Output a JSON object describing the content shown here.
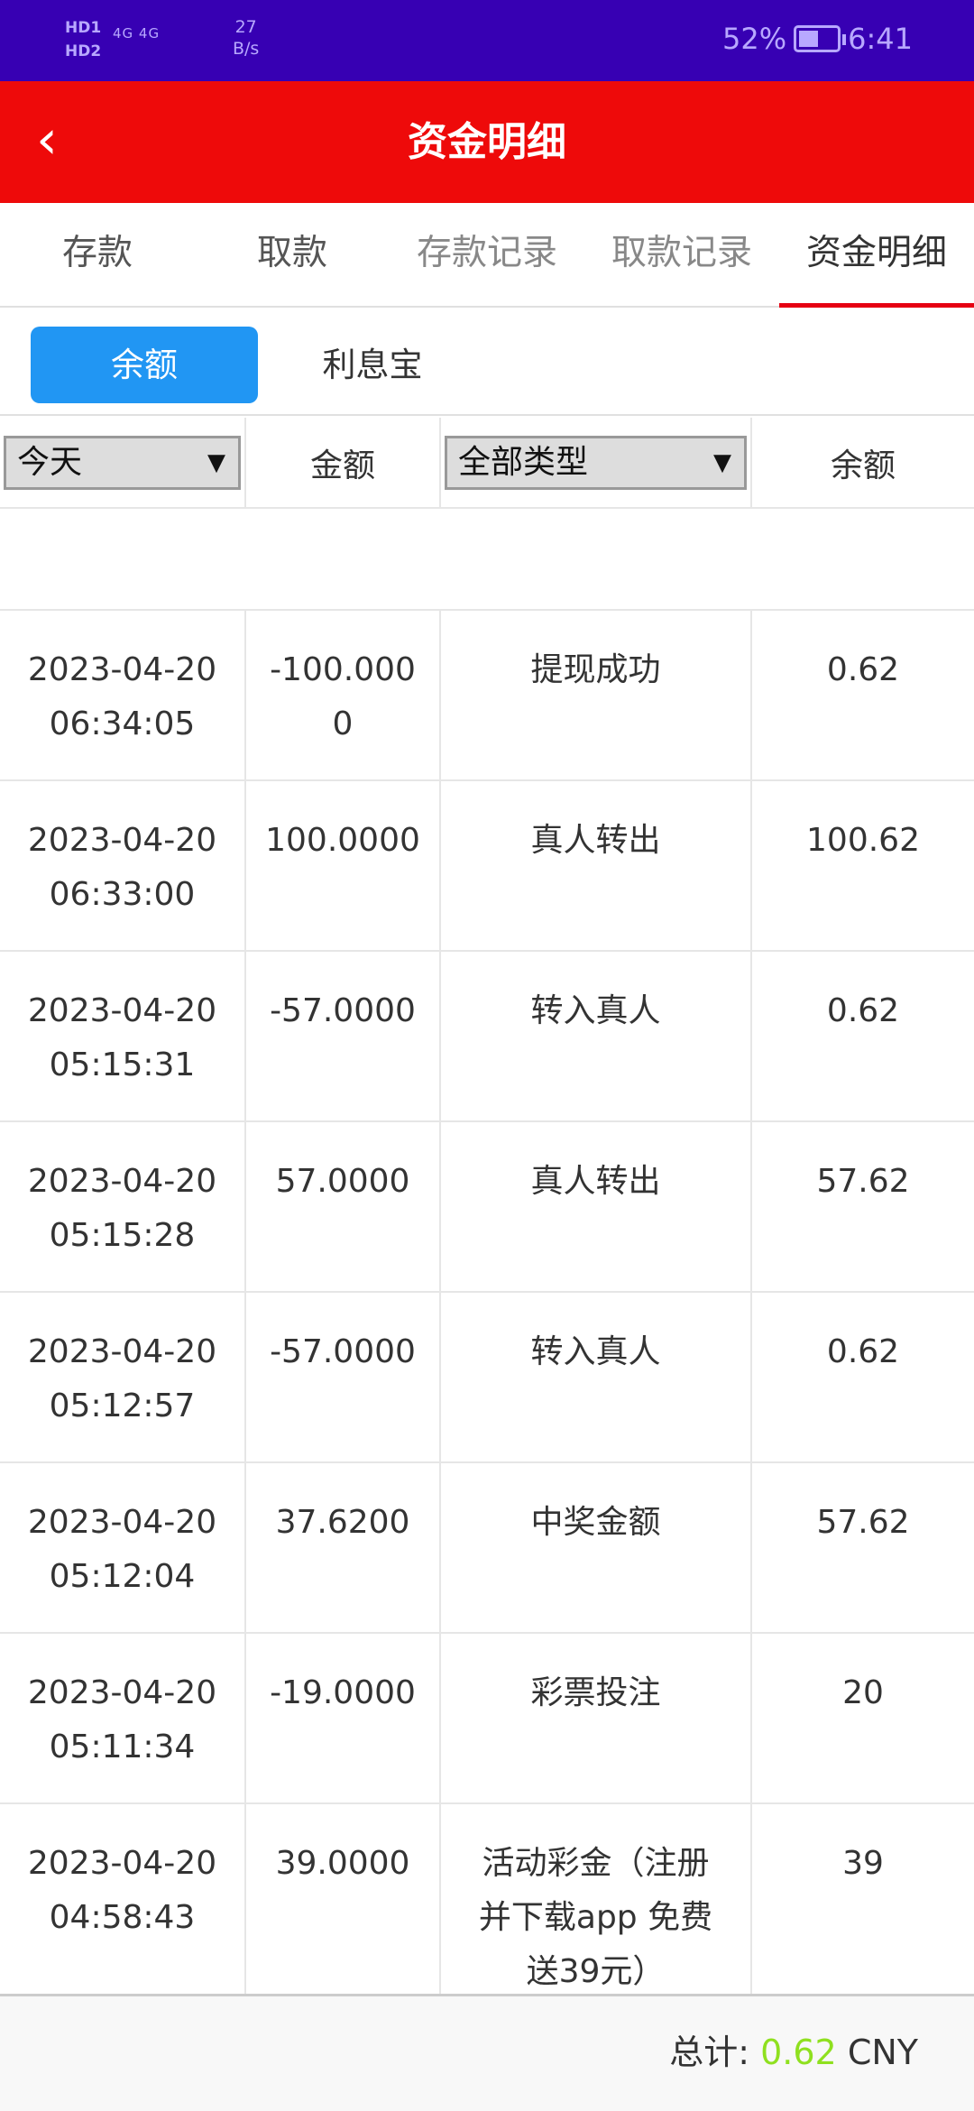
{
  "status_bar": {
    "hd1": "HD1",
    "hd2": "HD2",
    "signal": "4G 4G",
    "speed": "27",
    "speed_unit": "B/s",
    "battery": "52%",
    "battery_level": 0.52,
    "time": "6:41"
  },
  "header": {
    "title": "资金明细",
    "back_icon": "chevron-left-icon"
  },
  "tabs": [
    {
      "label": "存款"
    },
    {
      "label": "取款"
    },
    {
      "label": "存款记录"
    },
    {
      "label": "取款记录"
    },
    {
      "label": "资金明细",
      "active": true
    }
  ],
  "subtabs": [
    {
      "label": "余额",
      "active": true
    },
    {
      "label": "利息宝"
    }
  ],
  "table": {
    "date_filter": "今天",
    "amount_header": "金额",
    "type_filter": "全部类型",
    "balance_header": "余额",
    "rows": [
      {
        "date": "2023-04-20",
        "time": "06:34:05",
        "amount": "-100.0000",
        "type": "提现成功",
        "balance": "0.62"
      },
      {
        "date": "2023-04-20",
        "time": "06:33:00",
        "amount": "100.0000",
        "type": "真人转出",
        "balance": "100.62"
      },
      {
        "date": "2023-04-20",
        "time": "05:15:31",
        "amount": "-57.0000",
        "type": "转入真人",
        "balance": "0.62"
      },
      {
        "date": "2023-04-20",
        "time": "05:15:28",
        "amount": "57.0000",
        "type": "真人转出",
        "balance": "57.62"
      },
      {
        "date": "2023-04-20",
        "time": "05:12:57",
        "amount": "-57.0000",
        "type": "转入真人",
        "balance": "0.62"
      },
      {
        "date": "2023-04-20",
        "time": "05:12:04",
        "amount": "37.6200",
        "type": "中奖金额",
        "balance": "57.62"
      },
      {
        "date": "2023-04-20",
        "time": "05:11:34",
        "amount": "-19.0000",
        "type": "彩票投注",
        "balance": "20"
      },
      {
        "date": "2023-04-20",
        "time": "04:58:43",
        "amount": "39.0000",
        "type": "活动彩金（注册并下载app 免费送39元）",
        "balance": "39"
      }
    ]
  },
  "footer": {
    "label": "总计:",
    "value": "0.62",
    "currency": "CNY",
    "value_color": "#8fe01f"
  },
  "colors": {
    "status_bar": "#3700b3",
    "header": "#ee0a0a",
    "accent": "#2196f3",
    "tab_underline": "#e60012"
  }
}
